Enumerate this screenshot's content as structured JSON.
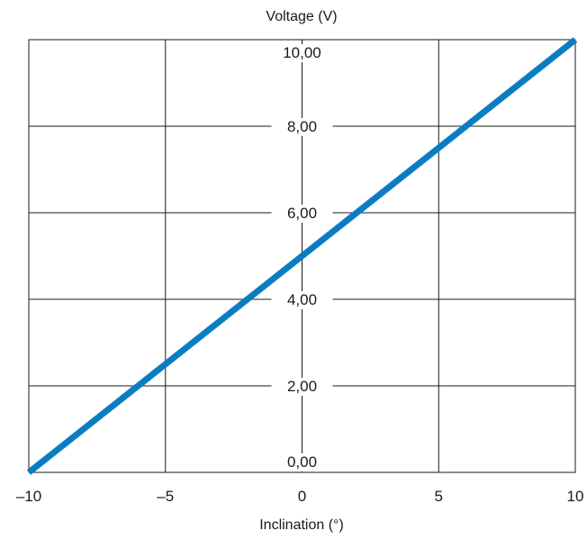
{
  "chart_data": {
    "type": "line",
    "ylabel": "Voltage (V)",
    "xlabel": "Inclination (°)",
    "xlim": [
      -10,
      10
    ],
    "ylim": [
      0,
      10
    ],
    "x_ticks": [
      -10,
      -5,
      0,
      5,
      10
    ],
    "x_tick_labels": [
      "–10",
      "–5",
      "0",
      "5",
      "10"
    ],
    "y_ticks": [
      0,
      2,
      4,
      6,
      8,
      10
    ],
    "y_tick_labels": [
      "0,00",
      "2,00",
      "4,00",
      "6,00",
      "8,00",
      "10,00"
    ],
    "grid": true,
    "series": [
      {
        "x": [
          -10,
          10
        ],
        "y": [
          0,
          10
        ],
        "color": "#0a7dc2"
      }
    ]
  }
}
